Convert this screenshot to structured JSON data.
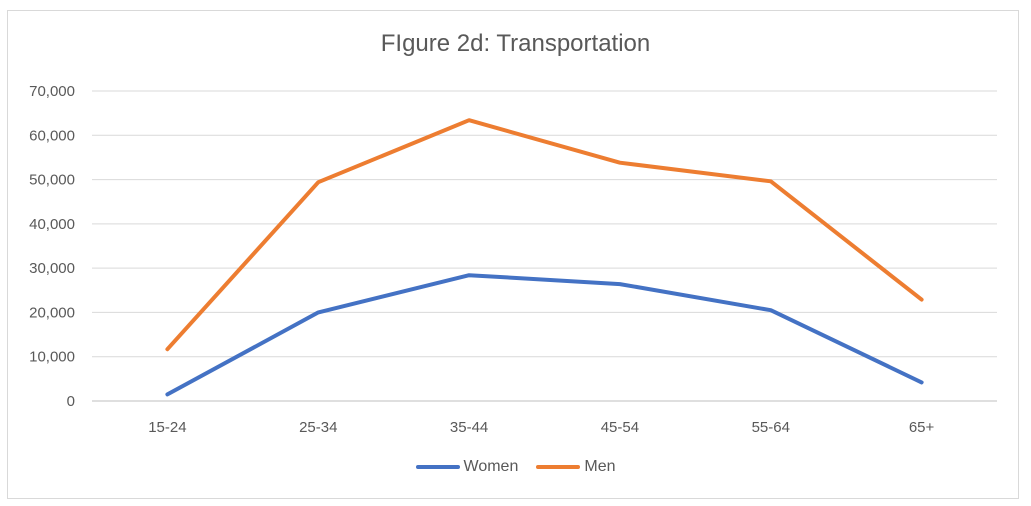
{
  "chart_data": {
    "type": "line",
    "title": "FIgure 2d: Transportation",
    "categories": [
      "15-24",
      "25-34",
      "35-44",
      "45-54",
      "55-64",
      "65+"
    ],
    "ylim": [
      0,
      70000
    ],
    "yticks": [
      0,
      10000,
      20000,
      30000,
      40000,
      50000,
      60000,
      70000
    ],
    "ytick_labels": [
      "0",
      "10,000",
      "20,000",
      "30,000",
      "40,000",
      "50,000",
      "60,000",
      "70,000"
    ],
    "grid": true,
    "legend_position": "bottom",
    "series": [
      {
        "name": "Women",
        "color": "#4472c4",
        "values": [
          1500,
          20000,
          28400,
          26400,
          20500,
          4200
        ]
      },
      {
        "name": "Men",
        "color": "#ed7d31",
        "values": [
          11700,
          49400,
          63400,
          53800,
          49600,
          22900
        ]
      }
    ]
  }
}
